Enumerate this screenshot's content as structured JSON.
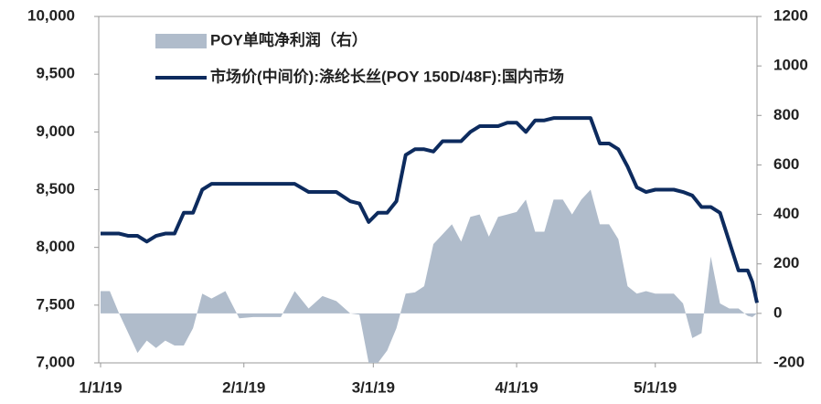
{
  "chart_data": {
    "type": "line-area",
    "x": [
      "2019-01-01",
      "2019-01-03",
      "2019-01-05",
      "2019-01-07",
      "2019-01-09",
      "2019-01-11",
      "2019-01-13",
      "2019-01-15",
      "2019-01-17",
      "2019-01-19",
      "2019-01-21",
      "2019-01-23",
      "2019-01-25",
      "2019-01-28",
      "2019-01-31",
      "2019-02-03",
      "2019-02-06",
      "2019-02-09",
      "2019-02-12",
      "2019-02-15",
      "2019-02-18",
      "2019-02-21",
      "2019-02-24",
      "2019-02-26",
      "2019-02-28",
      "2019-03-02",
      "2019-03-04",
      "2019-03-06",
      "2019-03-08",
      "2019-03-10",
      "2019-03-12",
      "2019-03-14",
      "2019-03-16",
      "2019-03-18",
      "2019-03-20",
      "2019-03-22",
      "2019-03-24",
      "2019-03-26",
      "2019-03-28",
      "2019-03-30",
      "2019-04-01",
      "2019-04-03",
      "2019-04-05",
      "2019-04-07",
      "2019-04-09",
      "2019-04-11",
      "2019-04-13",
      "2019-04-15",
      "2019-04-17",
      "2019-04-19",
      "2019-04-21",
      "2019-04-23",
      "2019-04-25",
      "2019-04-27",
      "2019-04-29",
      "2019-05-01",
      "2019-05-03",
      "2019-05-05",
      "2019-05-07",
      "2019-05-09",
      "2019-05-11",
      "2019-05-13",
      "2019-05-15",
      "2019-05-17",
      "2019-05-19",
      "2019-05-21",
      "2019-05-22",
      "2019-05-23"
    ],
    "series": [
      {
        "name": "POY单吨净利润（右）",
        "kind": "area",
        "axis": "y2",
        "color": "#b0bccb",
        "values": [
          90,
          90,
          0,
          -80,
          -160,
          -110,
          -140,
          -110,
          -130,
          -130,
          -60,
          80,
          60,
          90,
          -20,
          -15,
          -15,
          -15,
          90,
          20,
          70,
          50,
          0,
          -5,
          -200,
          -200,
          -150,
          -60,
          80,
          85,
          110,
          280,
          320,
          360,
          290,
          390,
          400,
          310,
          390,
          400,
          410,
          460,
          330,
          330,
          460,
          460,
          400,
          460,
          500,
          360,
          360,
          300,
          110,
          80,
          90,
          80,
          80,
          80,
          40,
          -100,
          -80,
          230,
          40,
          20,
          20,
          -10,
          -15,
          0
        ]
      },
      {
        "name": "市场价(中间价):涤纶长丝(POY 150D/48F):国内市场",
        "kind": "line",
        "color": "#0d2b5e",
        "values": [
          8120,
          8120,
          8120,
          8100,
          8100,
          8050,
          8100,
          8120,
          8120,
          8300,
          8300,
          8500,
          8550,
          8550,
          8550,
          8550,
          8550,
          8550,
          8550,
          8480,
          8480,
          8480,
          8400,
          8380,
          8220,
          8300,
          8300,
          8400,
          8800,
          8850,
          8850,
          8830,
          8920,
          8920,
          8920,
          9000,
          9050,
          9050,
          9050,
          9080,
          9080,
          9000,
          9100,
          9100,
          9120,
          9120,
          9120,
          9120,
          9120,
          8900,
          8900,
          8850,
          8700,
          8520,
          8480,
          8500,
          8500,
          8500,
          8480,
          8450,
          8350,
          8350,
          8300,
          8050,
          7800,
          7800,
          7700,
          7520
        ]
      }
    ],
    "xlim": [
      "2019-01-01",
      "2019-05-23"
    ],
    "xticks": [
      {
        "value": "2019-01-01",
        "label": "1/1/19"
      },
      {
        "value": "2019-02-01",
        "label": "2/1/19"
      },
      {
        "value": "2019-03-01",
        "label": "3/1/19"
      },
      {
        "value": "2019-04-01",
        "label": "4/1/19"
      },
      {
        "value": "2019-05-01",
        "label": "5/1/19"
      }
    ],
    "ylim": [
      7000,
      10000
    ],
    "yticks": [
      {
        "value": 7000,
        "label": "7,000"
      },
      {
        "value": 7500,
        "label": "7,500"
      },
      {
        "value": 8000,
        "label": "8,000"
      },
      {
        "value": 8500,
        "label": "8,500"
      },
      {
        "value": 9000,
        "label": "9,000"
      },
      {
        "value": 9500,
        "label": "9,500"
      },
      {
        "value": 10000,
        "label": "10,000"
      }
    ],
    "y2lim": [
      -200,
      1200
    ],
    "y2ticks": [
      -200,
      0,
      200,
      400,
      600,
      800,
      1000,
      1200
    ],
    "legend": "top-left"
  }
}
